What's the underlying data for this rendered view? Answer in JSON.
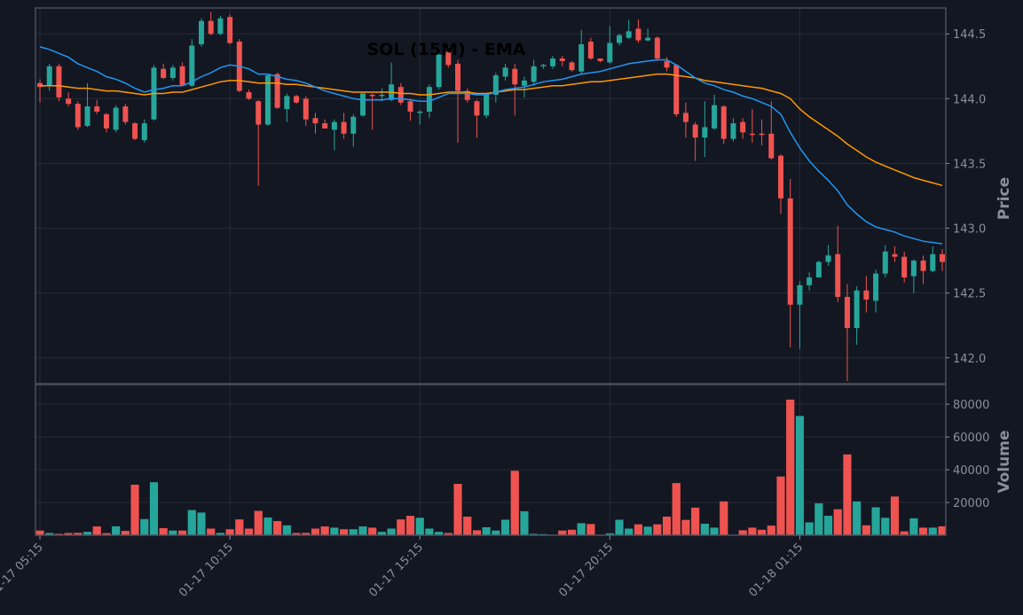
{
  "chart_data": {
    "type": "candlestick",
    "title": "SOL (15M) - EMA",
    "price_ylabel": "Price",
    "volume_ylabel": "Volume",
    "price_ylim": [
      141.8,
      144.7
    ],
    "price_ticks": [
      "142.0",
      "142.5",
      "143.0",
      "143.5",
      "144.0",
      "144.5"
    ],
    "volume_ylim": [
      0,
      92000
    ],
    "volume_ticks": [
      "20000",
      "40000",
      "60000",
      "80000"
    ],
    "x_tick_labels": [
      "01-17 05:15",
      "01-17 10:15",
      "01-17 15:15",
      "01-17 20:15",
      "01-18 01:15"
    ],
    "x_tick_index": [
      0,
      20,
      40,
      60,
      80
    ],
    "colors": {
      "up": "#26a69a",
      "down": "#ef5350",
      "ema_fast": "#2196f3",
      "ema_slow": "#ff9800",
      "grid": "#262b38",
      "frame": "#4a4f5c"
    },
    "candles": [
      [
        144.12,
        144.15,
        143.97,
        144.09
      ],
      [
        144.1,
        144.27,
        144.06,
        144.25
      ],
      [
        144.25,
        144.27,
        143.98,
        144.01
      ],
      [
        144.0,
        144.05,
        143.94,
        143.96
      ],
      [
        143.96,
        143.98,
        143.76,
        143.78
      ],
      [
        143.79,
        144.12,
        143.78,
        143.94
      ],
      [
        143.94,
        143.99,
        143.88,
        143.9
      ],
      [
        143.88,
        143.89,
        143.74,
        143.77
      ],
      [
        143.76,
        143.95,
        143.74,
        143.93
      ],
      [
        143.94,
        143.96,
        143.8,
        143.82
      ],
      [
        143.81,
        143.82,
        143.68,
        143.69
      ],
      [
        143.68,
        143.84,
        143.66,
        143.81
      ],
      [
        143.84,
        144.26,
        143.83,
        144.24
      ],
      [
        144.23,
        144.27,
        144.15,
        144.16
      ],
      [
        144.16,
        144.26,
        144.14,
        144.24
      ],
      [
        144.25,
        144.28,
        144.1,
        144.1
      ],
      [
        144.1,
        144.46,
        144.09,
        144.41
      ],
      [
        144.42,
        144.62,
        144.4,
        144.6
      ],
      [
        144.6,
        144.67,
        144.49,
        144.5
      ],
      [
        144.5,
        144.64,
        144.49,
        144.62
      ],
      [
        144.63,
        144.65,
        144.42,
        144.43
      ],
      [
        144.44,
        144.46,
        144.05,
        144.06
      ],
      [
        144.05,
        144.07,
        143.99,
        144.0
      ],
      [
        143.98,
        143.99,
        143.33,
        143.8
      ],
      [
        143.8,
        144.19,
        143.79,
        144.18
      ],
      [
        144.19,
        144.2,
        143.92,
        143.93
      ],
      [
        143.92,
        144.04,
        143.82,
        144.02
      ],
      [
        144.02,
        144.03,
        143.96,
        143.97
      ],
      [
        144.0,
        144.02,
        143.79,
        143.84
      ],
      [
        143.85,
        143.89,
        143.73,
        143.81
      ],
      [
        143.81,
        143.84,
        143.77,
        143.77
      ],
      [
        143.76,
        143.84,
        143.6,
        143.82
      ],
      [
        143.82,
        143.89,
        143.69,
        143.73
      ],
      [
        143.73,
        143.88,
        143.63,
        143.86
      ],
      [
        143.87,
        144.05,
        143.86,
        144.04
      ],
      [
        144.03,
        144.04,
        143.76,
        144.02
      ],
      [
        144.02,
        144.08,
        143.98,
        144.03
      ],
      [
        143.99,
        144.28,
        143.98,
        144.11
      ],
      [
        144.09,
        144.12,
        143.95,
        143.97
      ],
      [
        143.98,
        144.0,
        143.83,
        143.9
      ],
      [
        143.89,
        143.91,
        143.8,
        143.9
      ],
      [
        143.9,
        144.11,
        143.85,
        144.09
      ],
      [
        144.09,
        144.35,
        144.07,
        144.34
      ],
      [
        144.36,
        144.4,
        144.24,
        144.26
      ],
      [
        144.27,
        144.3,
        143.66,
        144.06
      ],
      [
        144.06,
        144.08,
        143.97,
        143.99
      ],
      [
        143.98,
        143.99,
        143.7,
        143.87
      ],
      [
        143.87,
        144.04,
        143.85,
        144.03
      ],
      [
        144.03,
        144.2,
        143.97,
        144.18
      ],
      [
        144.17,
        144.27,
        144.14,
        144.24
      ],
      [
        144.23,
        144.27,
        143.87,
        144.11
      ],
      [
        144.1,
        144.17,
        144.01,
        144.14
      ],
      [
        144.13,
        144.3,
        144.1,
        144.25
      ],
      [
        144.25,
        144.27,
        144.23,
        144.26
      ],
      [
        144.25,
        144.33,
        144.23,
        144.31
      ],
      [
        144.31,
        144.33,
        144.25,
        144.29
      ],
      [
        144.28,
        144.29,
        144.21,
        144.22
      ],
      [
        144.21,
        144.53,
        144.19,
        144.42
      ],
      [
        144.44,
        144.47,
        144.3,
        144.31
      ],
      [
        144.31,
        144.3,
        144.28,
        144.29
      ],
      [
        144.28,
        144.56,
        144.27,
        144.43
      ],
      [
        144.43,
        144.5,
        144.41,
        144.49
      ],
      [
        144.47,
        144.61,
        144.46,
        144.52
      ],
      [
        144.54,
        144.61,
        144.43,
        144.45
      ],
      [
        144.45,
        144.54,
        144.44,
        144.47
      ],
      [
        144.47,
        144.48,
        144.29,
        144.31
      ],
      [
        144.29,
        144.32,
        144.21,
        144.24
      ],
      [
        144.26,
        144.25,
        143.86,
        143.88
      ],
      [
        143.89,
        143.97,
        143.7,
        143.82
      ],
      [
        143.8,
        143.82,
        143.52,
        143.7
      ],
      [
        143.7,
        143.98,
        143.55,
        143.78
      ],
      [
        143.77,
        144.03,
        143.76,
        143.95
      ],
      [
        143.94,
        143.95,
        143.65,
        143.69
      ],
      [
        143.69,
        143.85,
        143.67,
        143.81
      ],
      [
        143.82,
        143.85,
        143.69,
        143.74
      ],
      [
        143.73,
        143.92,
        143.66,
        143.72
      ],
      [
        143.73,
        143.84,
        143.64,
        143.72
      ],
      [
        143.73,
        143.98,
        143.53,
        143.54
      ],
      [
        143.56,
        143.57,
        143.11,
        143.23
      ],
      [
        143.23,
        143.38,
        142.08,
        142.41
      ],
      [
        142.41,
        142.59,
        142.07,
        142.56
      ],
      [
        142.56,
        142.66,
        142.52,
        142.62
      ],
      [
        142.62,
        142.75,
        142.62,
        142.74
      ],
      [
        142.74,
        142.87,
        142.71,
        142.79
      ],
      [
        142.8,
        143.02,
        142.43,
        142.47
      ],
      [
        142.47,
        142.57,
        141.82,
        142.23
      ],
      [
        142.23,
        142.55,
        142.1,
        142.52
      ],
      [
        142.52,
        142.63,
        142.35,
        142.45
      ],
      [
        142.44,
        142.68,
        142.35,
        142.65
      ],
      [
        142.65,
        142.87,
        142.62,
        142.82
      ],
      [
        142.8,
        142.86,
        142.74,
        142.78
      ],
      [
        142.78,
        142.82,
        142.58,
        142.62
      ],
      [
        142.63,
        142.76,
        142.5,
        142.75
      ],
      [
        142.75,
        142.79,
        142.57,
        142.67
      ],
      [
        142.67,
        142.86,
        142.66,
        142.8
      ],
      [
        142.8,
        142.84,
        142.67,
        142.74
      ]
    ],
    "volumes": [
      3000,
      1500,
      1000,
      1500,
      1600,
      2200,
      5500,
      1400,
      5600,
      2800,
      31000,
      10000,
      32500,
      4500,
      3000,
      3000,
      15500,
      14000,
      4200,
      1600,
      3800,
      9800,
      4200,
      15000,
      11000,
      8800,
      6200,
      1500,
      1600,
      4200,
      5500,
      4800,
      3800,
      3800,
      5500,
      4800,
      2200,
      4200,
      9800,
      12000,
      10800,
      4200,
      2200,
      1500,
      31500,
      11500,
      3200,
      5000,
      3000,
      9600,
      39500,
      14800,
      1000,
      800,
      500,
      3000,
      3500,
      7500,
      7000,
      500,
      1300,
      9600,
      4200,
      6800,
      5400,
      6800,
      11500,
      32000,
      9500,
      17000,
      7200,
      4800,
      20800,
      500,
      3200,
      4800,
      3500,
      6000,
      36000,
      83000,
      73000,
      8000,
      19600,
      12000,
      16000,
      49500,
      20800,
      6200,
      17200,
      10800,
      23800,
      2500,
      10500,
      4800,
      4800,
      5600
    ],
    "ema_fast": [
      144.4,
      144.38,
      144.35,
      144.32,
      144.27,
      144.24,
      144.21,
      144.17,
      144.15,
      144.12,
      144.08,
      144.05,
      144.07,
      144.08,
      144.1,
      144.1,
      144.13,
      144.17,
      144.2,
      144.24,
      144.26,
      144.25,
      144.23,
      144.19,
      144.19,
      144.17,
      144.15,
      144.14,
      144.12,
      144.09,
      144.06,
      144.04,
      144.02,
      144.0,
      143.99,
      143.99,
      143.99,
      144.0,
      144.0,
      143.99,
      143.98,
      143.98,
      144.01,
      144.04,
      144.04,
      144.04,
      144.03,
      144.03,
      144.05,
      144.07,
      144.08,
      144.09,
      144.11,
      144.13,
      144.14,
      144.15,
      144.17,
      144.19,
      144.2,
      144.21,
      144.23,
      144.25,
      144.27,
      144.28,
      144.29,
      144.3,
      144.3,
      144.26,
      144.21,
      144.16,
      144.12,
      144.1,
      144.07,
      144.05,
      144.02,
      144.0,
      143.97,
      143.94,
      143.88,
      143.74,
      143.62,
      143.52,
      143.44,
      143.37,
      143.29,
      143.18,
      143.11,
      143.05,
      143.01,
      142.99,
      142.97,
      142.94,
      142.92,
      142.9,
      142.89,
      142.88
    ],
    "ema_slow": [
      144.1,
      144.1,
      144.1,
      144.09,
      144.08,
      144.08,
      144.07,
      144.06,
      144.06,
      144.05,
      144.04,
      144.03,
      144.04,
      144.04,
      144.05,
      144.05,
      144.07,
      144.09,
      144.11,
      144.13,
      144.14,
      144.14,
      144.13,
      144.12,
      144.12,
      144.12,
      144.11,
      144.11,
      144.1,
      144.09,
      144.08,
      144.07,
      144.06,
      144.05,
      144.05,
      144.05,
      144.05,
      144.05,
      144.04,
      144.04,
      144.03,
      144.03,
      144.04,
      144.05,
      144.05,
      144.05,
      144.04,
      144.04,
      144.05,
      144.06,
      144.07,
      144.07,
      144.08,
      144.09,
      144.1,
      144.1,
      144.11,
      144.12,
      144.13,
      144.13,
      144.14,
      144.15,
      144.16,
      144.17,
      144.18,
      144.19,
      144.19,
      144.18,
      144.17,
      144.16,
      144.14,
      144.13,
      144.12,
      144.11,
      144.1,
      144.09,
      144.08,
      144.06,
      144.04,
      144.0,
      143.92,
      143.86,
      143.81,
      143.76,
      143.71,
      143.65,
      143.6,
      143.55,
      143.51,
      143.48,
      143.45,
      143.42,
      143.39,
      143.37,
      143.35,
      143.33
    ]
  }
}
